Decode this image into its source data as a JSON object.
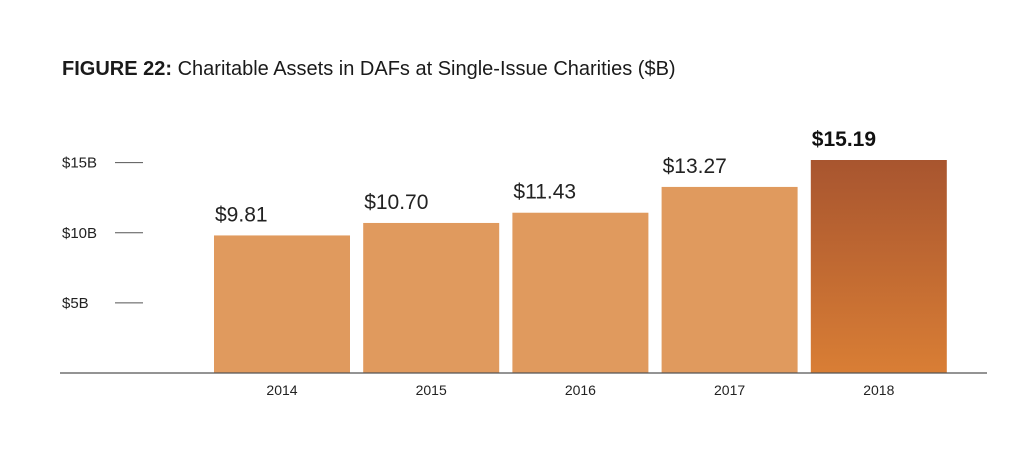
{
  "figure": {
    "label": "FIGURE 22:",
    "title": "Charitable Assets in DAFs at Single-Issue Charities ($B)"
  },
  "colors": {
    "bar": "#E09A5E",
    "highlight_top": "#A8552F",
    "highlight_bottom": "#D97E35",
    "axis": "#555555",
    "text": "#222222"
  },
  "chart_data": {
    "type": "bar",
    "categories": [
      "2014",
      "2015",
      "2016",
      "2017",
      "2018"
    ],
    "values": [
      9.81,
      10.7,
      11.43,
      13.27,
      15.19
    ],
    "value_labels": [
      "$9.81",
      "$10.70",
      "$11.43",
      "$13.27",
      "$15.19"
    ],
    "highlight_index": 4,
    "yticks": [
      {
        "value": 5,
        "label": "$5B"
      },
      {
        "value": 10,
        "label": "$10B"
      },
      {
        "value": 15,
        "label": "$15B"
      }
    ],
    "ylim": [
      0,
      15.19
    ],
    "grid": false
  }
}
